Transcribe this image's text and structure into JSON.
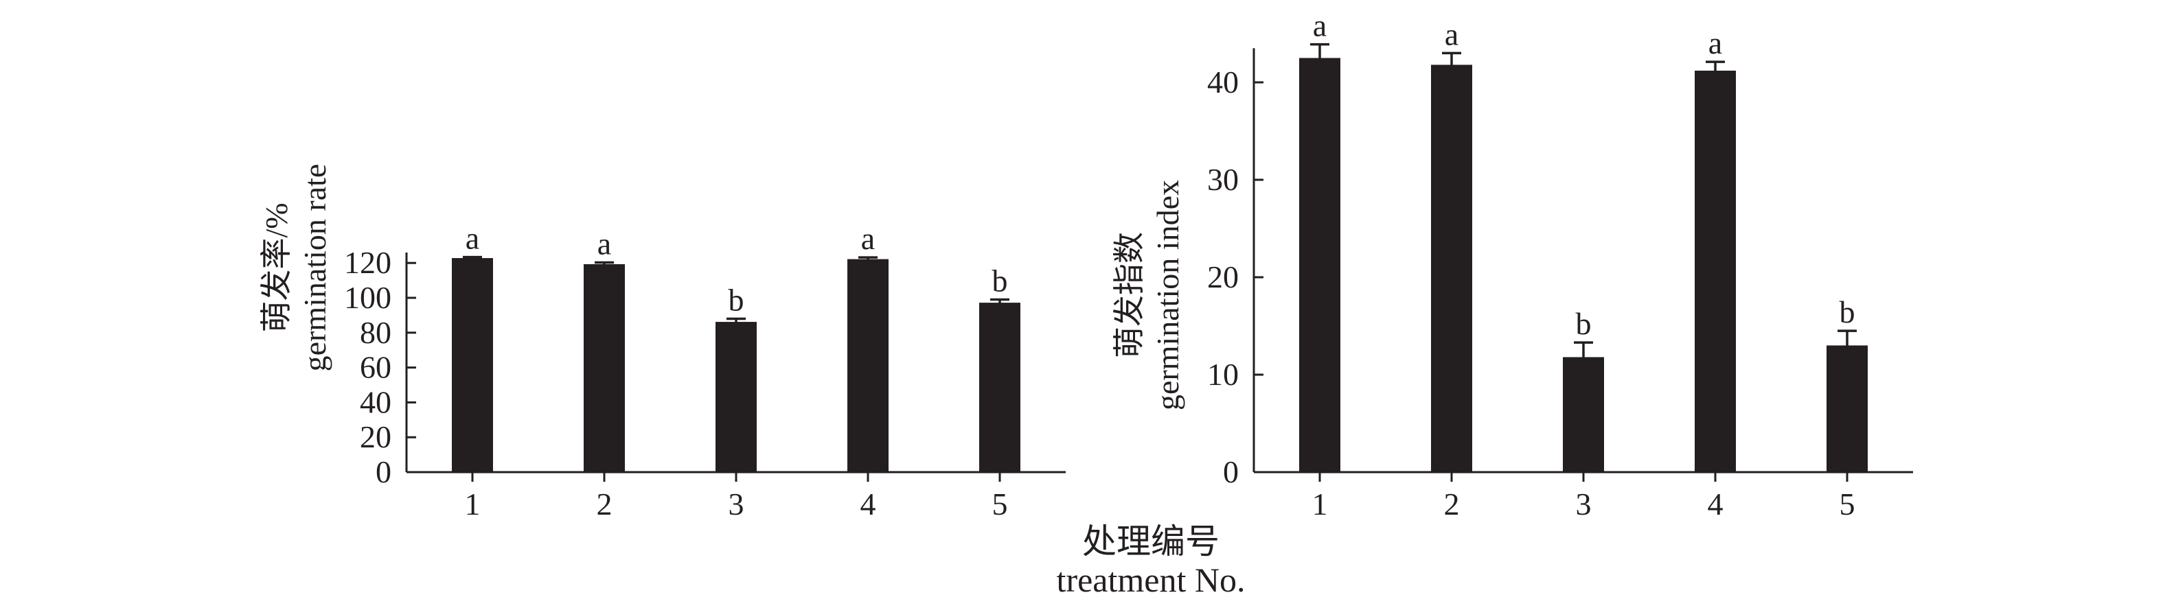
{
  "colors": {
    "bar": "#231f20",
    "axis": "#231f20",
    "text": "#231f20",
    "background": "#ffffff"
  },
  "shared_xlabel": [
    "处理编号",
    "treatment No."
  ],
  "chart_data": [
    {
      "type": "bar",
      "categories": [
        "1",
        "2",
        "3",
        "4",
        "5"
      ],
      "values": [
        122.8,
        119.3,
        86.2,
        122.2,
        97.2
      ],
      "errors": [
        0.6,
        1.0,
        1.8,
        1.0,
        1.8
      ],
      "significance": [
        "a",
        "a",
        "b",
        "a",
        "b"
      ],
      "ylabel": [
        "萌发率/%",
        "germination rate"
      ],
      "ylim": [
        0,
        120
      ],
      "yticks": [
        "0",
        "20",
        "40",
        "60",
        "80",
        "100",
        "120"
      ],
      "grid": false
    },
    {
      "type": "bar",
      "categories": [
        "1",
        "2",
        "3",
        "4",
        "5"
      ],
      "values": [
        42.5,
        41.8,
        11.8,
        41.2,
        13.0
      ],
      "errors": [
        1.4,
        1.2,
        1.5,
        0.9,
        1.5
      ],
      "significance": [
        "a",
        "a",
        "b",
        "a",
        "b"
      ],
      "ylabel": [
        "萌发指数",
        "germination index"
      ],
      "ylim": [
        0,
        40
      ],
      "yticks": [
        "0",
        "10",
        "20",
        "30",
        "40"
      ],
      "grid": false
    }
  ]
}
